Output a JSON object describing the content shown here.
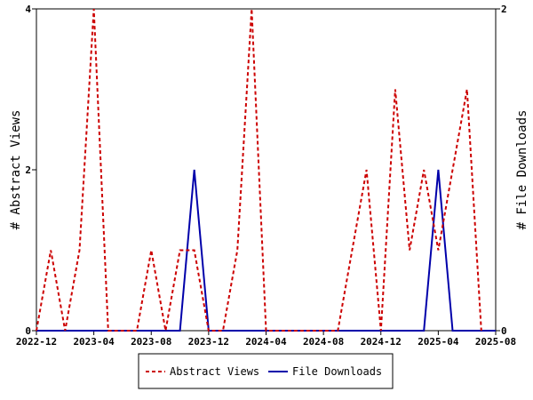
{
  "chart_data": {
    "type": "line",
    "title": "",
    "x_ticks": [
      "2022-12",
      "2023-04",
      "2023-08",
      "2023-12",
      "2024-04",
      "2024-08",
      "2024-12",
      "2025-04",
      "2025-08"
    ],
    "x_range": [
      "2022-12",
      "2025-08"
    ],
    "ylabel_left": "# Abstract Views",
    "ylabel_right": "# File Downloads",
    "ylim_left": [
      0,
      4
    ],
    "yticks_left": [
      "0",
      "2",
      "4"
    ],
    "ylim_right": [
      0,
      2
    ],
    "yticks_right": [
      "0",
      "2"
    ],
    "grid": false,
    "legend_position": "bottom-center",
    "series": [
      {
        "name": "Abstract Views",
        "axis": "left",
        "color": "#cc0000",
        "style": "dashed",
        "x": [
          "2022-12",
          "2023-01",
          "2023-02",
          "2023-03",
          "2023-04",
          "2023-05",
          "2023-06",
          "2023-07",
          "2023-08",
          "2023-09",
          "2023-10",
          "2023-11",
          "2023-12",
          "2024-01",
          "2024-02",
          "2024-03",
          "2024-04",
          "2024-05",
          "2024-06",
          "2024-07",
          "2024-08",
          "2024-09",
          "2024-10",
          "2024-11",
          "2024-12",
          "2025-01",
          "2025-02",
          "2025-03",
          "2025-04",
          "2025-05",
          "2025-06",
          "2025-07"
        ],
        "values": [
          0,
          1,
          0,
          1,
          4,
          0,
          0,
          0,
          1,
          0,
          1,
          1,
          0,
          0,
          1,
          4,
          0,
          0,
          0,
          0,
          0,
          0,
          1,
          2,
          0,
          3,
          1,
          2,
          1,
          2,
          3,
          0
        ]
      },
      {
        "name": "File Downloads",
        "axis": "right",
        "color": "#0000aa",
        "style": "solid",
        "x": [
          "2022-12",
          "2023-01",
          "2023-02",
          "2023-03",
          "2023-04",
          "2023-05",
          "2023-06",
          "2023-07",
          "2023-08",
          "2023-09",
          "2023-10",
          "2023-11",
          "2023-12",
          "2024-01",
          "2024-02",
          "2024-03",
          "2024-04",
          "2024-05",
          "2024-06",
          "2024-07",
          "2024-08",
          "2024-09",
          "2024-10",
          "2024-11",
          "2024-12",
          "2025-01",
          "2025-02",
          "2025-03",
          "2025-04",
          "2025-05",
          "2025-06",
          "2025-07",
          "2025-08"
        ],
        "values": [
          0,
          0,
          0,
          0,
          0,
          0,
          0,
          0,
          0,
          0,
          0,
          1,
          0,
          0,
          0,
          0,
          0,
          0,
          0,
          0,
          0,
          0,
          0,
          0,
          0,
          0,
          0,
          0,
          1,
          0,
          0,
          0,
          0
        ]
      }
    ]
  }
}
